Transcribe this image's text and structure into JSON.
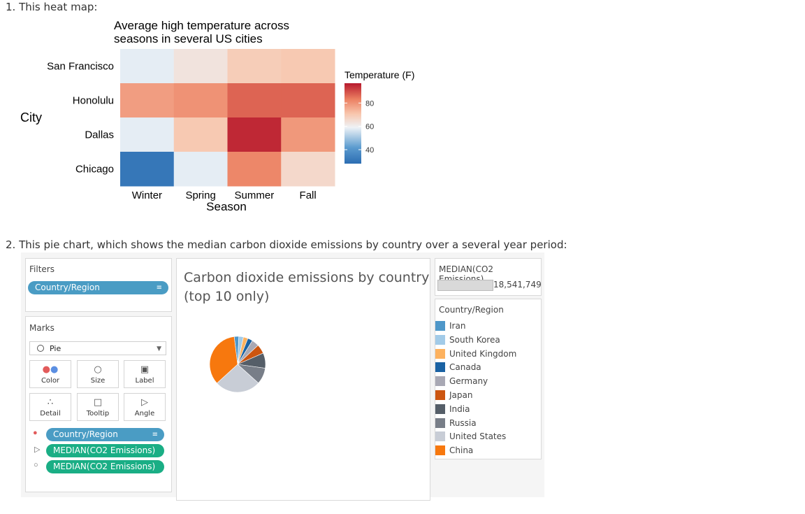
{
  "questions": {
    "q1": "1. This heat map:",
    "q2": "2. This pie chart, which shows the median carbon dioxide emissions by country over a several year period:"
  },
  "chart_data": [
    {
      "type": "heatmap",
      "title": "Average high temperature across seasons in several US cities",
      "title_lines": [
        "Average high temperature across",
        "seasons in several US cities"
      ],
      "xlabel": "Season",
      "ylabel": "City",
      "x_categories": [
        "Winter",
        "Spring",
        "Summer",
        "Fall"
      ],
      "y_categories": [
        "San Francisco",
        "Honolulu",
        "Dallas",
        "Chicago"
      ],
      "values": [
        [
          58,
          63,
          69,
          70
        ],
        [
          78,
          80,
          87,
          87
        ],
        [
          58,
          70,
          95,
          79
        ],
        [
          31,
          58,
          82,
          66
        ]
      ],
      "colorbar": {
        "label": "Temperature (F)",
        "range": [
          28,
          97
        ],
        "ticks": [
          40,
          60,
          80
        ],
        "colors": [
          "#2c6db2",
          "#5b9bcf",
          "#eef2f6",
          "#f8c6ad",
          "#ec8062",
          "#b7192d"
        ]
      }
    },
    {
      "type": "pie",
      "title_lines": [
        "Carbon dioxide emissions by country",
        "(top 10 only)"
      ],
      "categories": [
        "Iran",
        "South Korea",
        "United Kingdom",
        "Canada",
        "Germany",
        "Japan",
        "India",
        "Russia",
        "United States",
        "China"
      ],
      "values": [
        2.6,
        2.6,
        2.6,
        2.8,
        4.1,
        5.2,
        8.6,
        9.2,
        26.0,
        34.0
      ],
      "colors": [
        "#4e97c9",
        "#a2cbe8",
        "#fdb25f",
        "#1a62a3",
        "#a8a8b4",
        "#cc5510",
        "#555e68",
        "#787e88",
        "#c8cdd6",
        "#f7780e"
      ]
    }
  ],
  "tableau": {
    "filters": {
      "title": "Filters",
      "pill": "Country/Region"
    },
    "marks": {
      "title": "Marks",
      "type": "Pie",
      "buttons": {
        "color": "Color",
        "size": "Size",
        "label": "Label",
        "detail": "Detail",
        "tooltip": "Tooltip",
        "angle": "Angle"
      },
      "pills": [
        "Country/Region",
        "MEDIAN(CO2 Emissions)",
        "MEDIAN(CO2 Emissions)"
      ]
    },
    "size_legend": {
      "title": "MEDIAN(CO2 Emissions)",
      "value": "18,541,749"
    },
    "color_legend": {
      "title": "Country/Region"
    }
  }
}
